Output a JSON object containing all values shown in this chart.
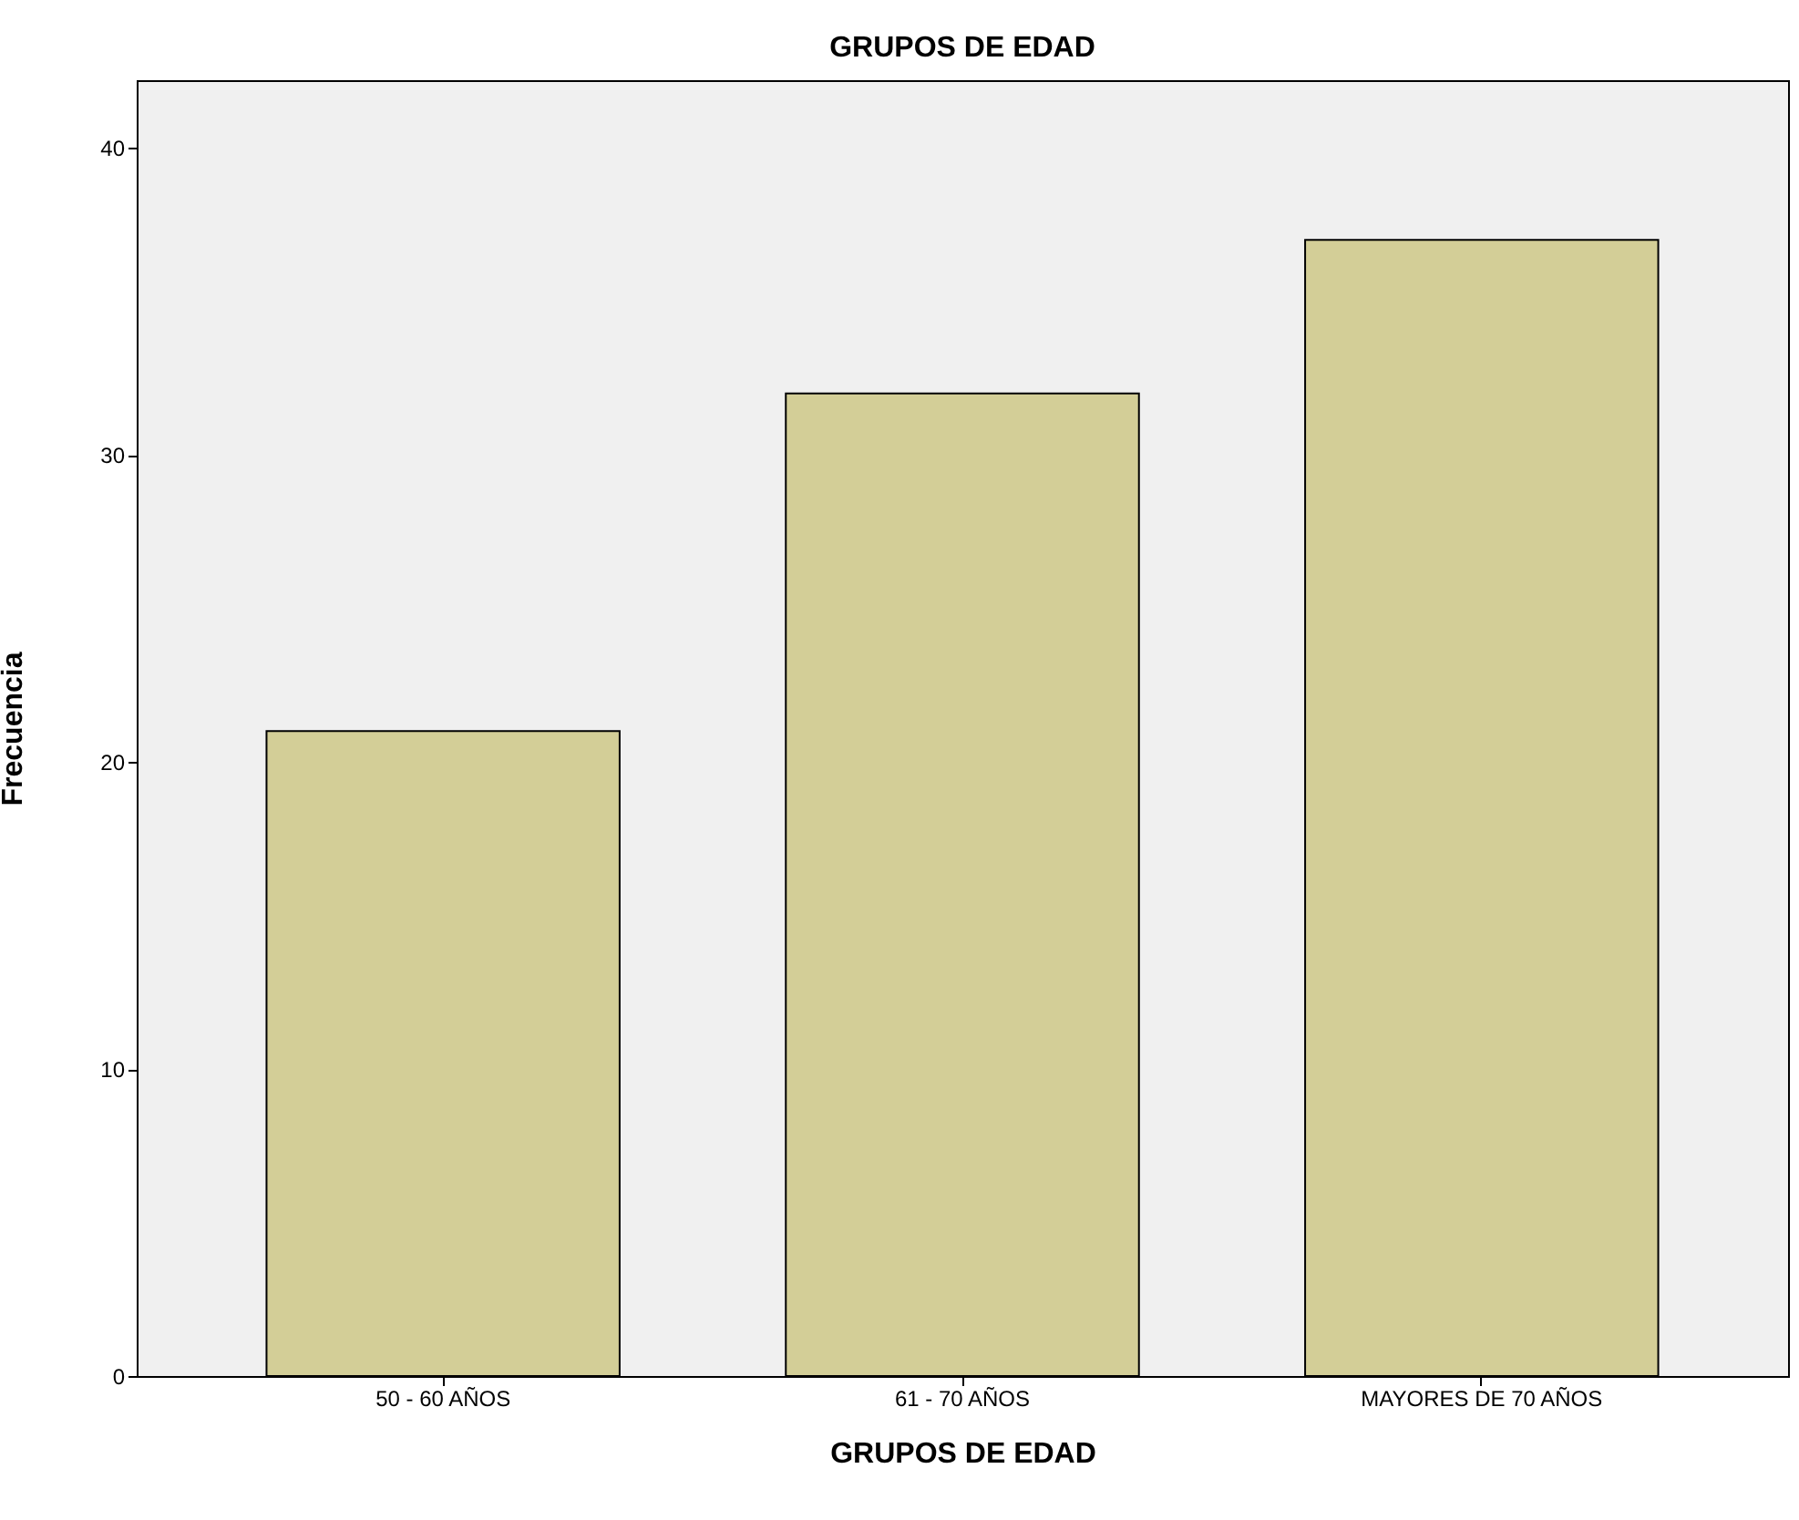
{
  "chart_data": {
    "type": "bar",
    "title": "GRUPOS DE EDAD",
    "xlabel": "GRUPOS DE EDAD",
    "ylabel": "Frecuencia",
    "categories": [
      "50 - 60 AÑOS",
      "61 - 70 AÑOS",
      "MAYORES DE 70 AÑOS"
    ],
    "values": [
      21,
      32,
      37
    ],
    "color": "#d3ce97",
    "ylim": [
      0,
      42.2
    ],
    "yticks": [
      0,
      10,
      20,
      30,
      40
    ]
  }
}
